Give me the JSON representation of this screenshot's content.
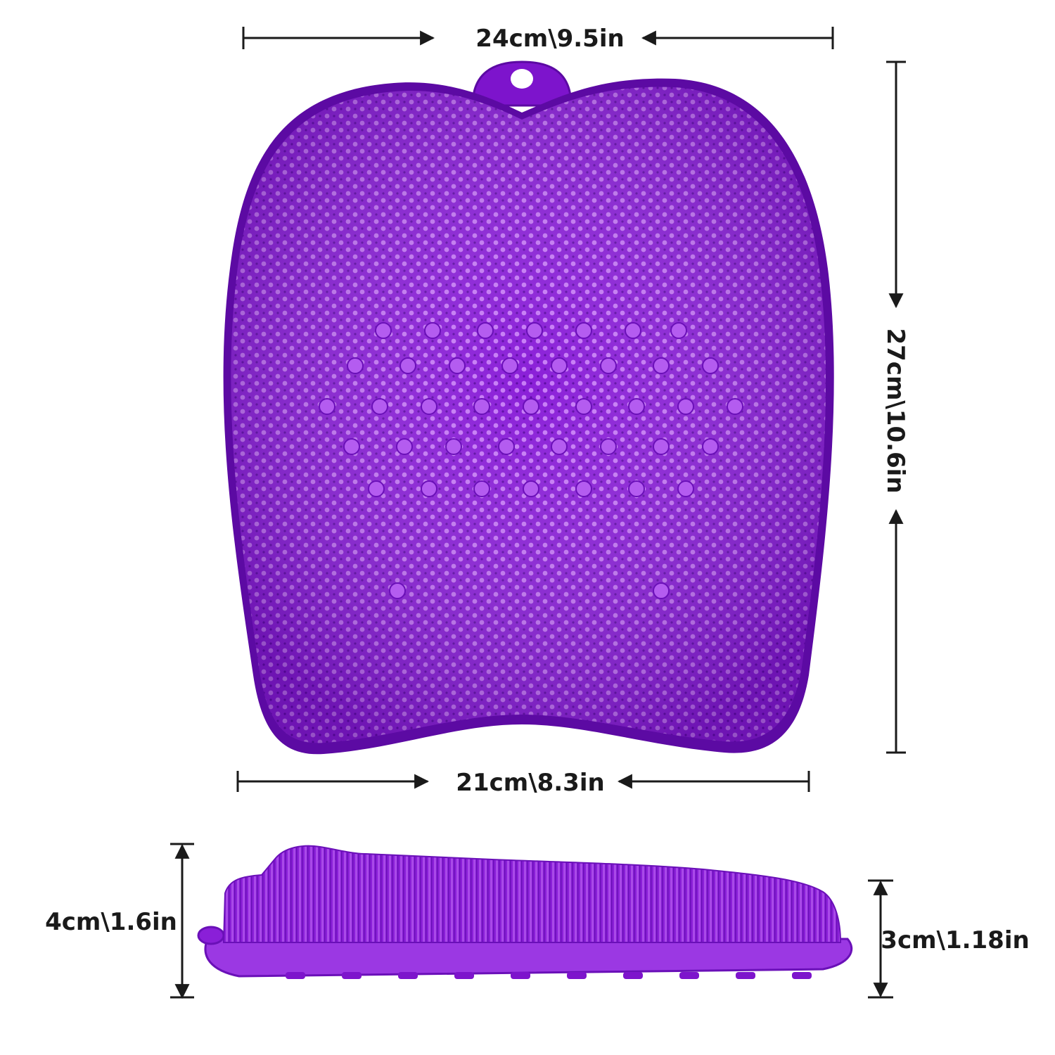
{
  "colors": {
    "accent": "#8a1fd8",
    "accent_dark": "#5c0aa3",
    "accent_light": "#c77cf6",
    "dimension_line": "#1a1a1a",
    "background": "#ffffff"
  },
  "dimensions": {
    "top_width": "24cm\\9.5in",
    "bottom_width": "21cm\\8.3in",
    "height": "27cm\\10.6in",
    "side_height_left": "4cm\\1.6in",
    "side_height_right": "3cm\\1.18in"
  }
}
